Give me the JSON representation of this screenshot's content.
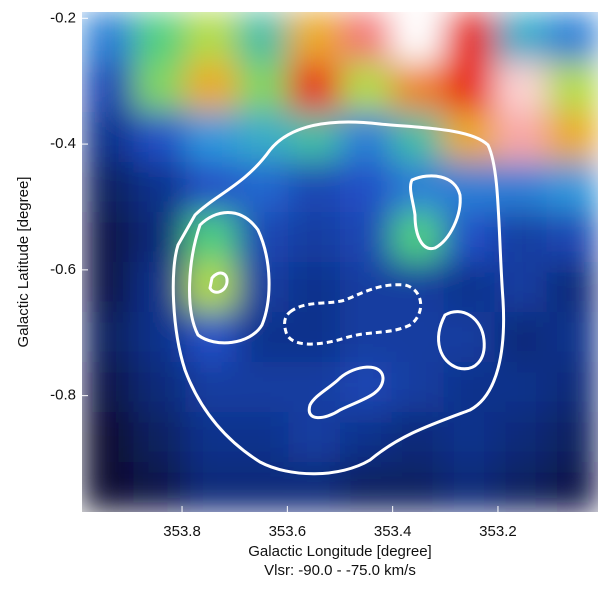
{
  "chart_data": {
    "type": "heatmap",
    "x_label": "Galactic Longitude [degree]",
    "y_label": "Galactic Latitude [degree]",
    "subtitle": "Vlsr: -90.0 - -75.0 km/s",
    "xlim": [
      353.99,
      353.01
    ],
    "ylim": [
      -0.985,
      -0.19
    ],
    "xticks": [
      353.8,
      353.6,
      353.4,
      353.2
    ],
    "yticks": [
      -0.2,
      -0.4,
      -0.6,
      -0.8
    ],
    "zlim": [
      0,
      2.7
    ],
    "z": [
      [
        1.0,
        1.4,
        1.6,
        1.3,
        1.9,
        2.4,
        2.7,
        2.2,
        1.2,
        1.0
      ],
      [
        0.7,
        1.5,
        1.9,
        1.5,
        2.2,
        1.6,
        2.0,
        2.2,
        2.6,
        1.6
      ],
      [
        0.5,
        0.8,
        1.1,
        1.2,
        1.3,
        1.0,
        1.3,
        1.9,
        2.5,
        1.9
      ],
      [
        0.3,
        0.5,
        0.8,
        0.9,
        0.7,
        0.8,
        1.0,
        1.0,
        1.0,
        1.1
      ],
      [
        0.2,
        0.4,
        1.4,
        0.7,
        0.6,
        0.7,
        1.4,
        0.8,
        0.6,
        0.7
      ],
      [
        0.2,
        0.5,
        1.6,
        0.6,
        0.5,
        0.6,
        0.6,
        0.5,
        0.6,
        0.4
      ],
      [
        0.3,
        0.5,
        0.8,
        0.5,
        0.5,
        0.6,
        0.6,
        0.6,
        0.4,
        0.5
      ],
      [
        0.2,
        0.4,
        0.6,
        0.6,
        0.6,
        0.7,
        0.6,
        0.5,
        0.5,
        0.4
      ],
      [
        0.1,
        0.3,
        0.5,
        0.5,
        0.6,
        0.5,
        0.4,
        0.5,
        0.4,
        0.3
      ],
      [
        0.1,
        0.2,
        0.4,
        0.4,
        0.4,
        0.3,
        0.3,
        0.4,
        0.3,
        0.2
      ]
    ]
  }
}
